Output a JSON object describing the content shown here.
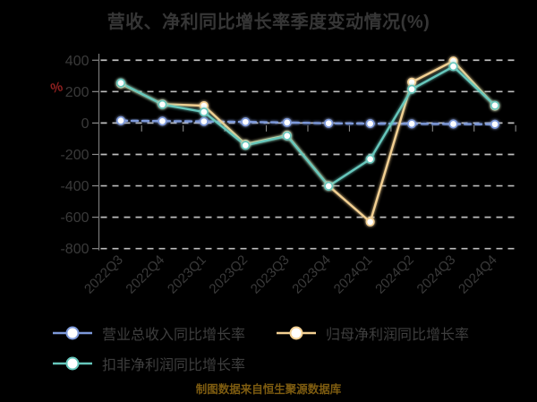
{
  "title": "营收、净利同比增长率季度变动情况(%)",
  "caption": "制图数据来自恒生聚源数据库",
  "y_axis": {
    "unit_label": "%",
    "tick_values": [
      400,
      200,
      0,
      -200,
      -400,
      -600,
      -800
    ]
  },
  "legend": {
    "items": [
      {
        "key": "revenue",
        "label": "营业总收入同比增长率"
      },
      {
        "key": "net_profit",
        "label": "归母净利润同比增长率"
      },
      {
        "key": "non_gaap",
        "label": "扣非净利润同比增长率"
      }
    ]
  },
  "colors": {
    "background": "#000000",
    "title_text": "#363636",
    "axis_text": "#3a3a3a",
    "grid": "#bdbdbd",
    "spine": "#7a7a7a",
    "tick": "#8a8a8a",
    "percent_symbol": "#8e1f1f",
    "legend_text": "#3e3e3e",
    "caption_text": "#7e5c10",
    "marker_fill": "#ffffff",
    "revenue": "#7d99da",
    "net_profit": "#f3d092",
    "non_gaap": "#66c7bc"
  },
  "chart_data": {
    "type": "line",
    "title": "营收、净利同比增长率季度变动情况(%)",
    "xlabel": "",
    "ylabel": "%",
    "ylim": [
      -800,
      400
    ],
    "y_ticks": [
      400,
      200,
      0,
      -200,
      -400,
      -600,
      -800
    ],
    "grid": "horizontal-dashed",
    "legend_position": "bottom-left",
    "categories": [
      "2022Q3",
      "2022Q4",
      "2023Q1",
      "2023Q2",
      "2023Q3",
      "2023Q4",
      "2024Q1",
      "2024Q2",
      "2024Q3",
      "2024Q4"
    ],
    "series": [
      {
        "name": "营业总收入同比增长率",
        "key": "revenue",
        "style": "dashed",
        "values": [
          15,
          12,
          10,
          7,
          3,
          -2,
          -4,
          -5,
          -6,
          -8
        ]
      },
      {
        "name": "归母净利润同比增长率",
        "key": "net_profit",
        "style": "solid",
        "values": [
          250,
          120,
          110,
          -135,
          -78,
          -400,
          -630,
          260,
          395,
          108
        ]
      },
      {
        "name": "扣非净利润同比增长率",
        "key": "non_gaap",
        "style": "solid",
        "values": [
          255,
          118,
          70,
          -142,
          -82,
          -402,
          -230,
          215,
          360,
          112
        ]
      }
    ]
  }
}
